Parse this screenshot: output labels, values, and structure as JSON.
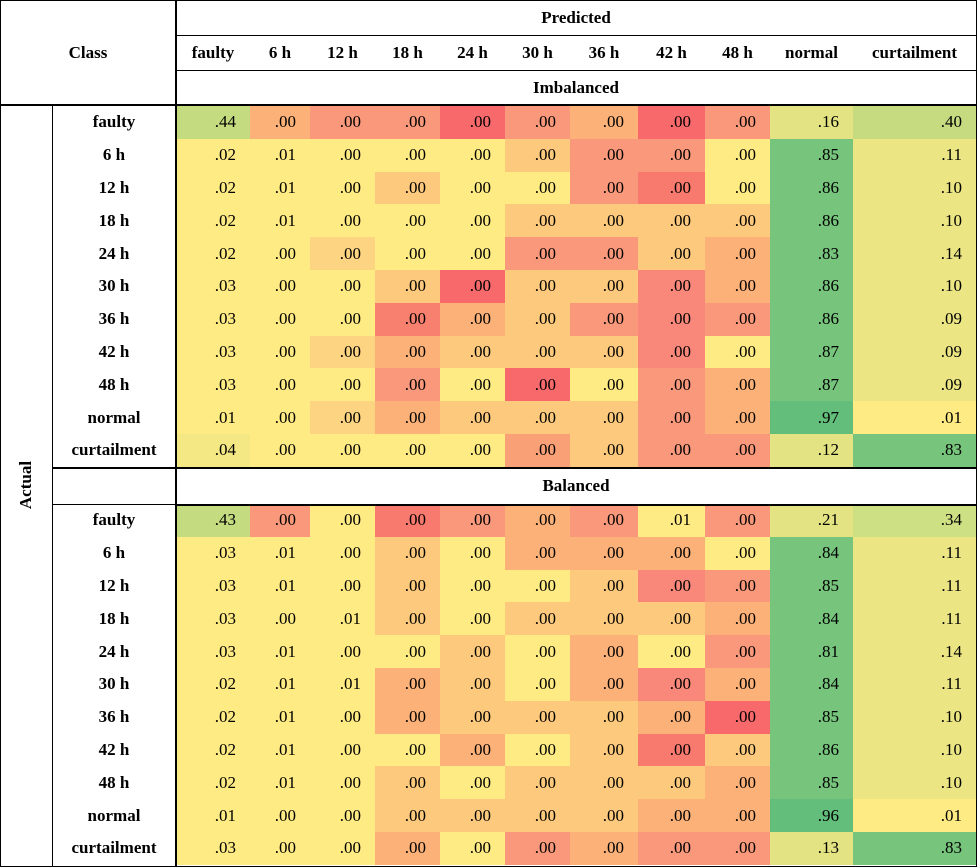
{
  "header": {
    "predicted": "Predicted",
    "class": "Class",
    "actual": "Actual"
  },
  "columns": [
    "faulty",
    "6 h",
    "12 h",
    "18 h",
    "24 h",
    "30 h",
    "36 h",
    "42 h",
    "48 h",
    "normal",
    "curtailment"
  ],
  "sections": [
    {
      "title": "Imbalanced",
      "rows": [
        {
          "label": "faulty",
          "values": [
            ".44",
            ".00",
            ".00",
            ".00",
            ".00",
            ".00",
            ".00",
            ".00",
            ".00",
            ".16",
            ".40"
          ],
          "colors": [
            "#c5db80",
            "#fbb178",
            "#f9987a",
            "#f9987a",
            "#f8696b",
            "#f9987a",
            "#fbb178",
            "#f8696b",
            "#f9987a",
            "#e3e383",
            "#c6db80"
          ]
        },
        {
          "label": "6 h",
          "values": [
            ".02",
            ".01",
            ".00",
            ".00",
            ".00",
            ".00",
            ".00",
            ".00",
            ".00",
            ".85",
            ".11"
          ],
          "colors": [
            "#ffeb84",
            "#ffeb84",
            "#ffeb84",
            "#ffeb84",
            "#ffeb84",
            "#fdc97d",
            "#f9987a",
            "#f9987a",
            "#ffeb84",
            "#77c47c",
            "#ebe683"
          ]
        },
        {
          "label": "12 h",
          "values": [
            ".02",
            ".01",
            ".00",
            ".00",
            ".00",
            ".00",
            ".00",
            ".00",
            ".00",
            ".86",
            ".10"
          ],
          "colors": [
            "#ffeb84",
            "#ffeb84",
            "#ffeb84",
            "#fdc97d",
            "#ffeb84",
            "#ffeb84",
            "#f9987a",
            "#f8796d",
            "#ffeb84",
            "#77c47c",
            "#ebe683"
          ]
        },
        {
          "label": "18 h",
          "values": [
            ".02",
            ".01",
            ".00",
            ".00",
            ".00",
            ".00",
            ".00",
            ".00",
            ".00",
            ".86",
            ".10"
          ],
          "colors": [
            "#ffeb84",
            "#ffeb84",
            "#ffeb84",
            "#ffeb84",
            "#ffeb84",
            "#fdc97d",
            "#fdc97d",
            "#fdc97d",
            "#fdc97d",
            "#77c47c",
            "#ebe683"
          ]
        },
        {
          "label": "24 h",
          "values": [
            ".02",
            ".00",
            ".00",
            ".00",
            ".00",
            ".00",
            ".00",
            ".00",
            ".00",
            ".83",
            ".14"
          ],
          "colors": [
            "#ffeb84",
            "#ffeb84",
            "#fdd481",
            "#ffeb84",
            "#ffeb84",
            "#f9987a",
            "#f9987a",
            "#fdc97d",
            "#fbb178",
            "#77c47c",
            "#ebe683"
          ]
        },
        {
          "label": "30 h",
          "values": [
            ".03",
            ".00",
            ".00",
            ".00",
            ".00",
            ".00",
            ".00",
            ".00",
            ".00",
            ".86",
            ".10"
          ],
          "colors": [
            "#ffeb84",
            "#ffeb84",
            "#ffeb84",
            "#fdc97d",
            "#f8696b",
            "#fdc97d",
            "#fdc97d",
            "#f9887a",
            "#fbb178",
            "#77c47c",
            "#ebe683"
          ]
        },
        {
          "label": "36 h",
          "values": [
            ".03",
            ".00",
            ".00",
            ".00",
            ".00",
            ".00",
            ".00",
            ".00",
            ".00",
            ".86",
            ".09"
          ],
          "colors": [
            "#ffeb84",
            "#ffeb84",
            "#ffeb84",
            "#f8806f",
            "#fbb178",
            "#fdc97d",
            "#f9987a",
            "#f9887a",
            "#f9987a",
            "#77c47c",
            "#ebe683"
          ]
        },
        {
          "label": "42 h",
          "values": [
            ".03",
            ".00",
            ".00",
            ".00",
            ".00",
            ".00",
            ".00",
            ".00",
            ".00",
            ".87",
            ".09"
          ],
          "colors": [
            "#ffeb84",
            "#ffeb84",
            "#fdd481",
            "#fbb178",
            "#fdc97d",
            "#fdc97d",
            "#fdc97d",
            "#f9887a",
            "#ffeb84",
            "#77c47c",
            "#ebe683"
          ]
        },
        {
          "label": "48 h",
          "values": [
            ".03",
            ".00",
            ".00",
            ".00",
            ".00",
            ".00",
            ".00",
            ".00",
            ".00",
            ".87",
            ".09"
          ],
          "colors": [
            "#ffeb84",
            "#ffeb84",
            "#ffeb84",
            "#f9987a",
            "#ffeb84",
            "#f8696b",
            "#ffeb84",
            "#f9987a",
            "#fbb178",
            "#77c47c",
            "#ebe683"
          ]
        },
        {
          "label": "normal",
          "values": [
            ".01",
            ".00",
            ".00",
            ".00",
            ".00",
            ".00",
            ".00",
            ".00",
            ".00",
            ".97",
            ".01"
          ],
          "colors": [
            "#ffeb84",
            "#ffeb84",
            "#fdd481",
            "#fbb178",
            "#fdc97d",
            "#fdc97d",
            "#fdc97d",
            "#f9987a",
            "#fbb178",
            "#63be7b",
            "#ffeb84"
          ]
        },
        {
          "label": "curtailment",
          "values": [
            ".04",
            ".00",
            ".00",
            ".00",
            ".00",
            ".00",
            ".00",
            ".00",
            ".00",
            ".12",
            ".83"
          ],
          "colors": [
            "#f4e884",
            "#ffeb84",
            "#ffeb84",
            "#ffeb84",
            "#ffeb84",
            "#f9a077",
            "#fdc97d",
            "#f9987a",
            "#f9987a",
            "#e3e383",
            "#77c47c"
          ]
        }
      ]
    },
    {
      "title": "Balanced",
      "rows": [
        {
          "label": "faulty",
          "values": [
            ".43",
            ".00",
            ".00",
            ".00",
            ".00",
            ".00",
            ".00",
            ".01",
            ".00",
            ".21",
            ".34"
          ],
          "colors": [
            "#c5db80",
            "#f9987a",
            "#ffeb84",
            "#f8796d",
            "#f9987a",
            "#fbb178",
            "#f9987a",
            "#ffeb84",
            "#f9987a",
            "#e3e383",
            "#cde083"
          ]
        },
        {
          "label": "6 h",
          "values": [
            ".03",
            ".01",
            ".00",
            ".00",
            ".00",
            ".00",
            ".00",
            ".00",
            ".00",
            ".84",
            ".11"
          ],
          "colors": [
            "#ffeb84",
            "#ffeb84",
            "#ffeb84",
            "#fdc97d",
            "#ffeb84",
            "#fbb178",
            "#fbb178",
            "#fbb178",
            "#ffeb84",
            "#77c47c",
            "#ebe683"
          ]
        },
        {
          "label": "12 h",
          "values": [
            ".03",
            ".01",
            ".00",
            ".00",
            ".00",
            ".00",
            ".00",
            ".00",
            ".00",
            ".85",
            ".11"
          ],
          "colors": [
            "#ffeb84",
            "#ffeb84",
            "#ffeb84",
            "#fdc97d",
            "#ffeb84",
            "#ffeb84",
            "#fdc97d",
            "#f9887a",
            "#f9987a",
            "#77c47c",
            "#ebe683"
          ]
        },
        {
          "label": "18 h",
          "values": [
            ".03",
            ".00",
            ".01",
            ".00",
            ".00",
            ".00",
            ".00",
            ".00",
            ".00",
            ".84",
            ".11"
          ],
          "colors": [
            "#ffeb84",
            "#ffeb84",
            "#ffeb84",
            "#fdc97d",
            "#ffeb84",
            "#fdc97d",
            "#fdc97d",
            "#fdc97d",
            "#fbb178",
            "#77c47c",
            "#ebe683"
          ]
        },
        {
          "label": "24 h",
          "values": [
            ".03",
            ".01",
            ".00",
            ".00",
            ".00",
            ".00",
            ".00",
            ".00",
            ".00",
            ".81",
            ".14"
          ],
          "colors": [
            "#ffeb84",
            "#ffeb84",
            "#ffeb84",
            "#ffeb84",
            "#fdc97d",
            "#ffeb84",
            "#fbb178",
            "#ffeb84",
            "#f9987a",
            "#77c47c",
            "#ebe683"
          ]
        },
        {
          "label": "30 h",
          "values": [
            ".02",
            ".01",
            ".01",
            ".00",
            ".00",
            ".00",
            ".00",
            ".00",
            ".00",
            ".84",
            ".11"
          ],
          "colors": [
            "#ffeb84",
            "#ffeb84",
            "#ffeb84",
            "#fbb178",
            "#fdc97d",
            "#ffeb84",
            "#fbb178",
            "#f9887a",
            "#fbb178",
            "#77c47c",
            "#ebe683"
          ]
        },
        {
          "label": "36 h",
          "values": [
            ".02",
            ".01",
            ".00",
            ".00",
            ".00",
            ".00",
            ".00",
            ".00",
            ".00",
            ".85",
            ".10"
          ],
          "colors": [
            "#ffeb84",
            "#ffeb84",
            "#ffeb84",
            "#fbb178",
            "#fdc97d",
            "#fdc97d",
            "#fdc97d",
            "#fbb178",
            "#f8696b",
            "#77c47c",
            "#ebe683"
          ]
        },
        {
          "label": "42 h",
          "values": [
            ".02",
            ".01",
            ".00",
            ".00",
            ".00",
            ".00",
            ".00",
            ".00",
            ".00",
            ".86",
            ".10"
          ],
          "colors": [
            "#ffeb84",
            "#ffeb84",
            "#ffeb84",
            "#ffeb84",
            "#fbb178",
            "#ffeb84",
            "#fdc97d",
            "#f8796d",
            "#fdc97d",
            "#77c47c",
            "#ebe683"
          ]
        },
        {
          "label": "48 h",
          "values": [
            ".02",
            ".01",
            ".00",
            ".00",
            ".00",
            ".00",
            ".00",
            ".00",
            ".00",
            ".85",
            ".10"
          ],
          "colors": [
            "#ffeb84",
            "#ffeb84",
            "#ffeb84",
            "#fdc97d",
            "#ffeb84",
            "#fdc97d",
            "#fdc97d",
            "#fdc97d",
            "#fbb178",
            "#77c47c",
            "#ebe683"
          ]
        },
        {
          "label": "normal",
          "values": [
            ".01",
            ".00",
            ".00",
            ".00",
            ".00",
            ".00",
            ".00",
            ".00",
            ".00",
            ".96",
            ".01"
          ],
          "colors": [
            "#ffeb84",
            "#ffeb84",
            "#ffeb84",
            "#fdc97d",
            "#fdc97d",
            "#fdc97d",
            "#fdc97d",
            "#fbb178",
            "#fbb178",
            "#63be7b",
            "#ffeb84"
          ]
        },
        {
          "label": "curtailment",
          "values": [
            ".03",
            ".00",
            ".00",
            ".00",
            ".00",
            ".00",
            ".00",
            ".00",
            ".00",
            ".13",
            ".83"
          ],
          "colors": [
            "#ffeb84",
            "#ffeb84",
            "#ffeb84",
            "#fbb178",
            "#ffeb84",
            "#f9987a",
            "#fbb178",
            "#f9987a",
            "#f9987a",
            "#e3e383",
            "#77c47c"
          ]
        }
      ]
    }
  ]
}
